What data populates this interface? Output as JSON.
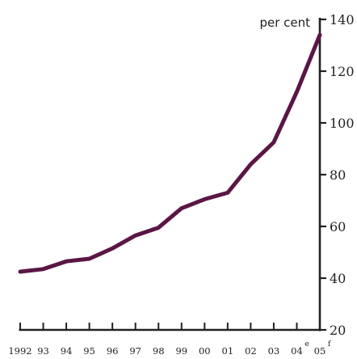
{
  "chart_data": {
    "type": "line",
    "title": "",
    "xlabel": "",
    "ylabel": "per cent",
    "categories": [
      "1992",
      "93",
      "94",
      "95",
      "96",
      "97",
      "98",
      "99",
      "00",
      "01",
      "02",
      "03",
      "04",
      "05"
    ],
    "category_superscripts": [
      "",
      "",
      "",
      "",
      "",
      "",
      "",
      "",
      "",
      "",
      "",
      "",
      "e",
      "f"
    ],
    "series": [
      {
        "values": [
          42.5,
          43.5,
          46.5,
          47.5,
          51.5,
          56.5,
          59.5,
          67,
          70.5,
          73,
          84,
          92.5,
          112,
          134
        ],
        "color": "#5a1645"
      }
    ],
    "ylim": [
      20,
      140
    ],
    "yticks": [
      20,
      40,
      60,
      80,
      100,
      120,
      140
    ],
    "y_axis_position": "right",
    "grid": false,
    "legend": "none"
  }
}
